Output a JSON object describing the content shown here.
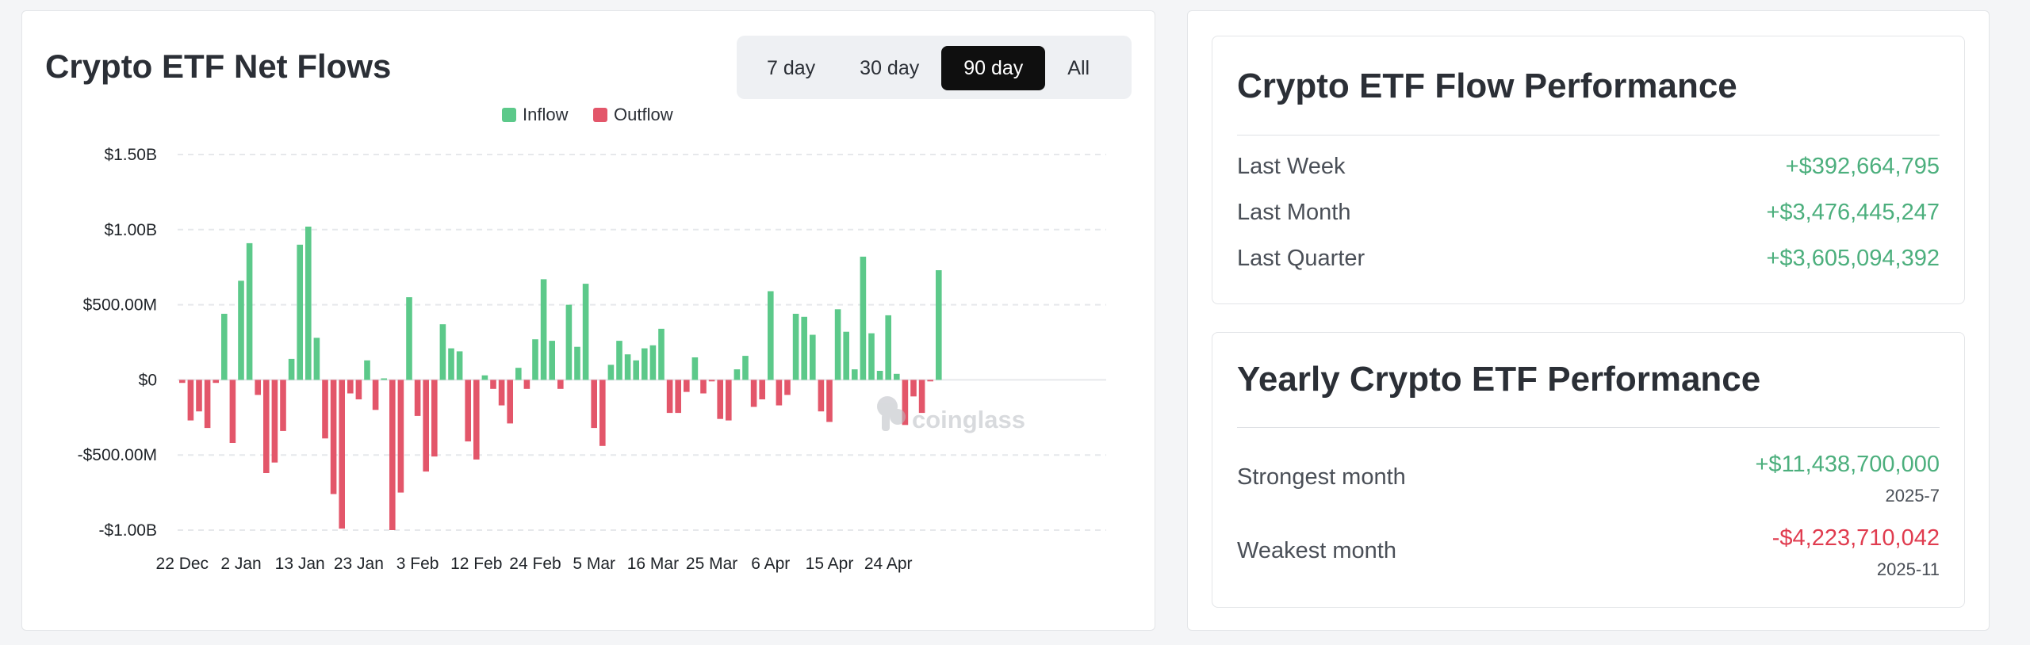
{
  "chart_panel": {
    "title": "Crypto ETF Net Flows",
    "tabs": [
      {
        "label": "7 day",
        "active": false
      },
      {
        "label": "30 day",
        "active": false
      },
      {
        "label": "90 day",
        "active": true
      },
      {
        "label": "All",
        "active": false
      }
    ],
    "watermark": "coinglass"
  },
  "colors": {
    "inflow": "#5cc98a",
    "outflow": "#e3566a",
    "positive_text": "#4caf7d",
    "negative_text": "#e03c4f"
  },
  "chart_data": {
    "type": "bar",
    "legend": [
      {
        "name": "Inflow",
        "color": "#5cc98a"
      },
      {
        "name": "Outflow",
        "color": "#e3566a"
      }
    ],
    "legend_position": "top-center",
    "ylim": [
      -1000000000,
      1500000000
    ],
    "yticks": [
      {
        "value": 1500000000,
        "label": "$1.50B"
      },
      {
        "value": 1000000000,
        "label": "$1.00B"
      },
      {
        "value": 500000000,
        "label": "$500.00M"
      },
      {
        "value": 0,
        "label": "$0"
      },
      {
        "value": -500000000,
        "label": "-$500.00M"
      },
      {
        "value": -1000000000,
        "label": "-$1.00B"
      }
    ],
    "xticks": [
      {
        "index": 0,
        "label": "22 Dec"
      },
      {
        "index": 7,
        "label": "2 Jan"
      },
      {
        "index": 14,
        "label": "13 Jan"
      },
      {
        "index": 21,
        "label": "23 Jan"
      },
      {
        "index": 28,
        "label": "3 Feb"
      },
      {
        "index": 35,
        "label": "12 Feb"
      },
      {
        "index": 42,
        "label": "24 Feb"
      },
      {
        "index": 49,
        "label": "5 Mar"
      },
      {
        "index": 56,
        "label": "16 Mar"
      },
      {
        "index": 63,
        "label": "25 Mar"
      },
      {
        "index": 70,
        "label": "6 Apr"
      },
      {
        "index": 77,
        "label": "15 Apr"
      },
      {
        "index": 84,
        "label": "24 Apr"
      }
    ],
    "grid": "horizontal-dashed",
    "values_millions": [
      -20,
      -270,
      -210,
      -320,
      -20,
      440,
      -420,
      660,
      910,
      -100,
      -620,
      -550,
      -340,
      140,
      900,
      1020,
      280,
      -390,
      -760,
      -990,
      -90,
      -130,
      130,
      -200,
      10,
      -1000,
      -750,
      550,
      -240,
      -610,
      -510,
      370,
      210,
      190,
      -410,
      -530,
      30,
      -60,
      -170,
      -290,
      80,
      -60,
      270,
      670,
      260,
      -60,
      500,
      220,
      640,
      -320,
      -440,
      100,
      260,
      170,
      130,
      210,
      230,
      340,
      -220,
      -220,
      -80,
      150,
      -90,
      -10,
      -260,
      -270,
      70,
      160,
      -180,
      -130,
      590,
      -170,
      -100,
      440,
      420,
      300,
      -210,
      -280,
      470,
      320,
      70,
      820,
      310,
      60,
      430,
      40,
      -300,
      -110,
      -220,
      -10,
      730
    ]
  },
  "flow_performance": {
    "title": "Crypto ETF Flow Performance",
    "rows": [
      {
        "label": "Last Week",
        "value": "+$392,664,795"
      },
      {
        "label": "Last Month",
        "value": "+$3,476,445,247"
      },
      {
        "label": "Last Quarter",
        "value": "+$3,605,094,392"
      }
    ]
  },
  "yearly_performance": {
    "title": "Yearly Crypto ETF Performance",
    "strongest": {
      "label": "Strongest month",
      "value": "+$11,438,700,000",
      "period": "2025-7"
    },
    "weakest": {
      "label": "Weakest month",
      "value": "-$4,223,710,042",
      "period": "2025-11"
    }
  }
}
